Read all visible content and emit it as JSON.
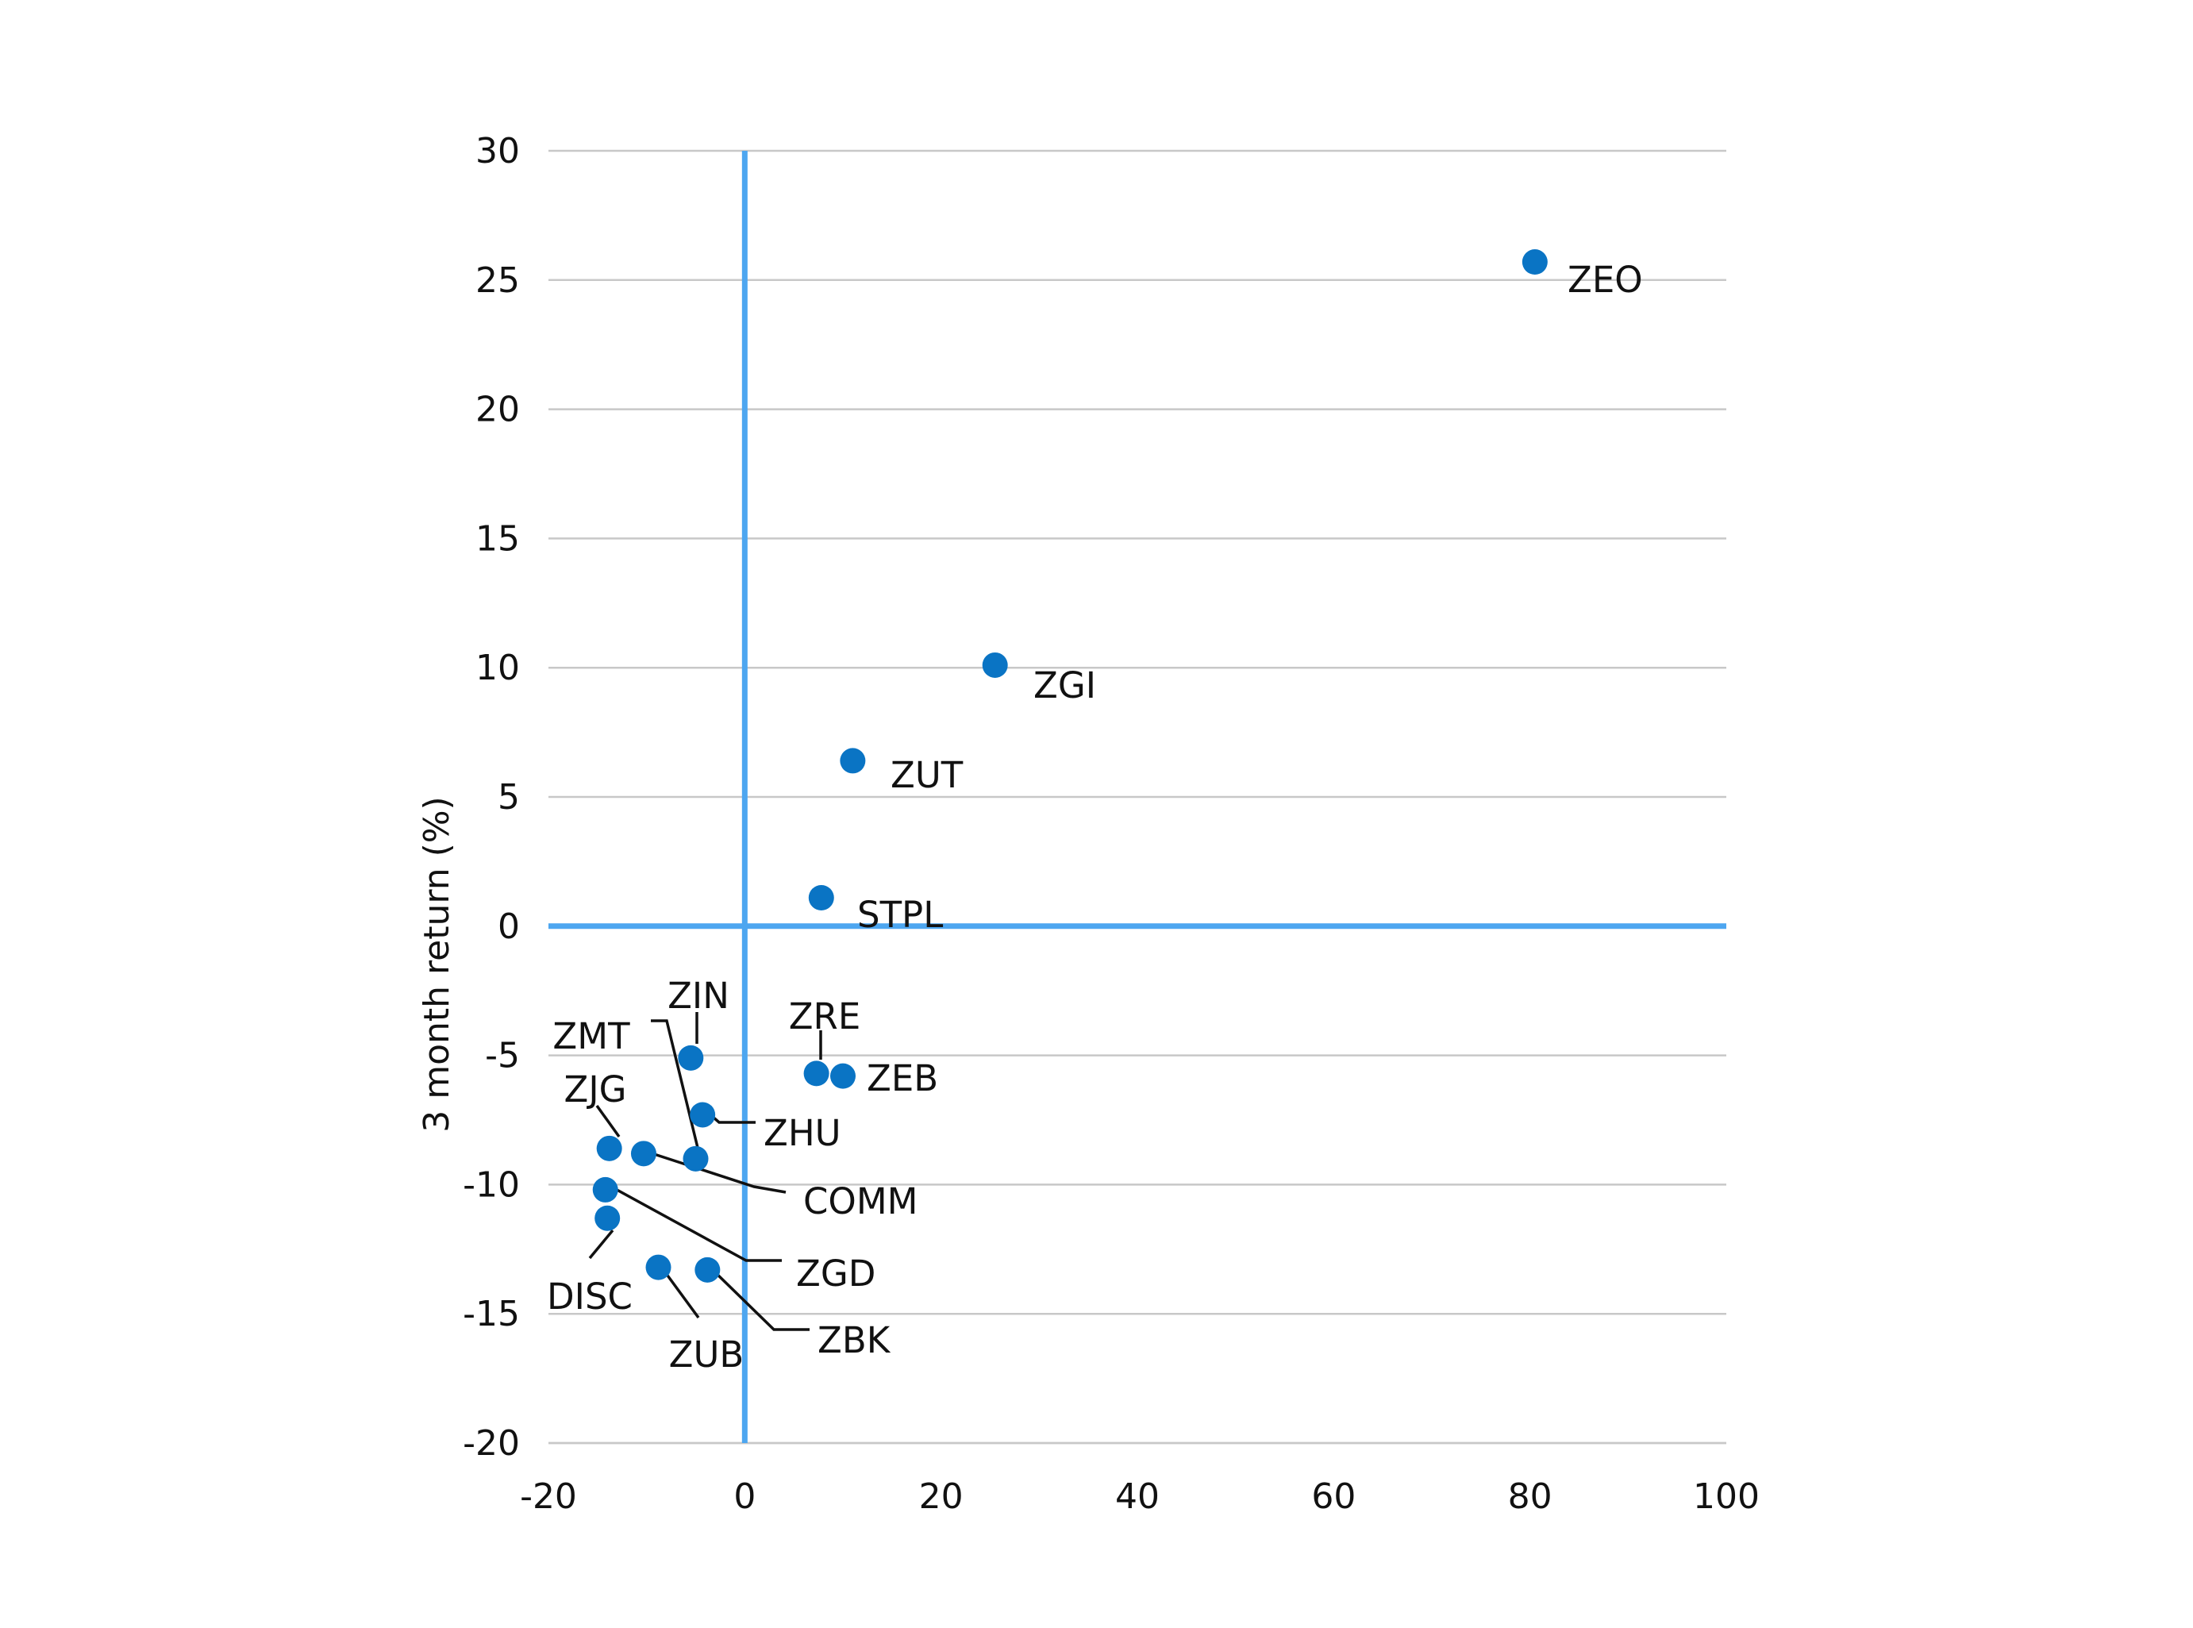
{
  "chart_data": {
    "type": "scatter",
    "title": "",
    "xlabel": "",
    "ylabel": "3 month return (%)",
    "xlim": [
      -20,
      100
    ],
    "ylim": [
      -20,
      30
    ],
    "x_ticks": [
      "-20",
      "0",
      "20",
      "40",
      "60",
      "80",
      "100"
    ],
    "y_ticks": [
      "30",
      "25",
      "20",
      "15",
      "10",
      "5",
      "0",
      "-5",
      "-10",
      "-15",
      "-20"
    ],
    "grid": "horizontal",
    "point_color": "#0a74c4",
    "zero_line_color": "#4da6f0",
    "points": [
      {
        "label": "ZEO",
        "x": 80.5,
        "y": 25.7
      },
      {
        "label": "ZGI",
        "x": 25.5,
        "y": 10.1
      },
      {
        "label": "ZUT",
        "x": 11.0,
        "y": 6.4
      },
      {
        "label": "STPL",
        "x": 7.8,
        "y": 1.1
      },
      {
        "label": "ZIN",
        "x": -5.5,
        "y": -5.1
      },
      {
        "label": "ZRE",
        "x": 7.3,
        "y": -5.7
      },
      {
        "label": "ZEB",
        "x": 10.0,
        "y": -5.8
      },
      {
        "label": "ZHU",
        "x": -4.3,
        "y": -7.3
      },
      {
        "label": "ZJG",
        "x": -13.8,
        "y": -8.6
      },
      {
        "label": "COMM",
        "x": -10.3,
        "y": -8.8
      },
      {
        "label": "ZMT",
        "x": -5.0,
        "y": -9.0
      },
      {
        "label": "ZGD",
        "x": -14.2,
        "y": -10.2
      },
      {
        "label": "DISC",
        "x": -14.0,
        "y": -11.3
      },
      {
        "label": "ZUB",
        "x": -8.8,
        "y": -13.2
      },
      {
        "label": "ZBK",
        "x": -3.8,
        "y": -13.3
      }
    ]
  }
}
